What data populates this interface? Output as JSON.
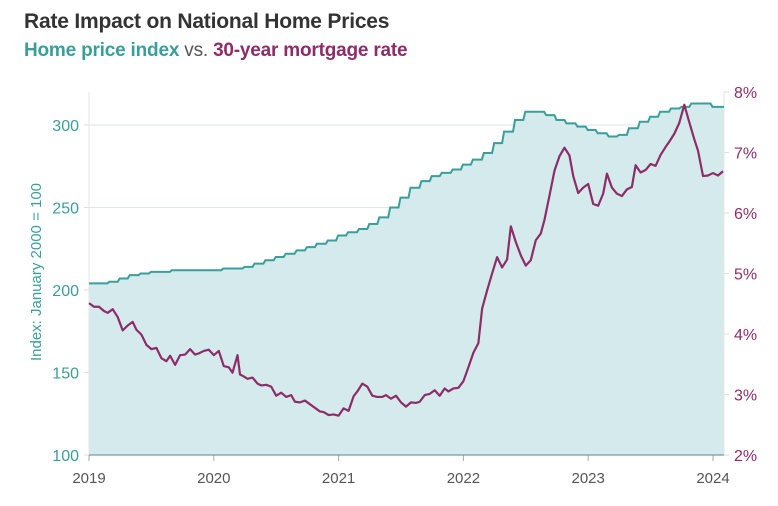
{
  "header": {
    "title": "Rate Impact on National Home Prices",
    "subtitle_part1": "Home price index",
    "subtitle_vs": "vs.",
    "subtitle_part2": "30-year mortgage rate"
  },
  "colors": {
    "hpi": "#3a9e9a",
    "hpi_fill": "#d5eaec",
    "rate": "#8c2d67",
    "grid": "#dfe6e8",
    "axis_text": "#555555"
  },
  "chart_data": {
    "type": "line",
    "title": "Rate Impact on National Home Prices",
    "subtitle": "Home price index vs. 30-year mortgage rate",
    "xlabel": "",
    "ylabel": "Index: January 2000 = 100",
    "y2label": "",
    "xlim": [
      2019.0,
      2024.1
    ],
    "ylim": [
      100,
      320
    ],
    "y2lim": [
      2,
      8
    ],
    "x_ticks": [
      "2019",
      "2020",
      "2021",
      "2022",
      "2023",
      "2024"
    ],
    "y_ticks": [
      "100",
      "150",
      "200",
      "250",
      "300"
    ],
    "y2_ticks": [
      "2%",
      "3%",
      "4%",
      "5%",
      "6%",
      "7%",
      "8%"
    ],
    "grid": true,
    "series": [
      {
        "name": "Home price index",
        "axis": "left",
        "style": "area-step",
        "x": [
          2019.0,
          2019.08,
          2019.17,
          2019.25,
          2019.33,
          2019.42,
          2019.5,
          2019.58,
          2019.67,
          2019.75,
          2019.83,
          2019.92,
          2020.0,
          2020.08,
          2020.17,
          2020.25,
          2020.33,
          2020.42,
          2020.5,
          2020.58,
          2020.67,
          2020.75,
          2020.83,
          2020.92,
          2021.0,
          2021.08,
          2021.17,
          2021.25,
          2021.33,
          2021.42,
          2021.5,
          2021.58,
          2021.67,
          2021.75,
          2021.83,
          2021.92,
          2022.0,
          2022.08,
          2022.17,
          2022.25,
          2022.33,
          2022.42,
          2022.5,
          2022.58,
          2022.67,
          2022.75,
          2022.83,
          2022.92,
          2023.0,
          2023.08,
          2023.17,
          2023.25,
          2023.33,
          2023.42,
          2023.5,
          2023.58,
          2023.67,
          2023.75,
          2023.83,
          2023.92,
          2024.0,
          2024.08
        ],
        "values": [
          204,
          204,
          205,
          207,
          209,
          210,
          211,
          211,
          212,
          212,
          212,
          212,
          212,
          213,
          213,
          214,
          216,
          218,
          220,
          222,
          224,
          226,
          228,
          230,
          233,
          235,
          237,
          240,
          244,
          250,
          256,
          262,
          266,
          269,
          271,
          273,
          276,
          279,
          283,
          289,
          296,
          303,
          308,
          308,
          306,
          303,
          301,
          299,
          297,
          295,
          293,
          294,
          298,
          302,
          305,
          308,
          310,
          311,
          313,
          313,
          311,
          311
        ]
      },
      {
        "name": "30-year mortgage rate",
        "axis": "right",
        "style": "line",
        "x": [
          2019.0,
          2019.04,
          2019.08,
          2019.12,
          2019.15,
          2019.19,
          2019.23,
          2019.27,
          2019.31,
          2019.35,
          2019.38,
          2019.42,
          2019.46,
          2019.5,
          2019.54,
          2019.58,
          2019.62,
          2019.65,
          2019.69,
          2019.73,
          2019.77,
          2019.81,
          2019.85,
          2019.88,
          2019.92,
          2019.96,
          2020.0,
          2020.04,
          2020.08,
          2020.12,
          2020.15,
          2020.19,
          2020.21,
          2020.23,
          2020.27,
          2020.31,
          2020.35,
          2020.38,
          2020.42,
          2020.46,
          2020.5,
          2020.54,
          2020.58,
          2020.62,
          2020.65,
          2020.69,
          2020.73,
          2020.77,
          2020.81,
          2020.85,
          2020.88,
          2020.92,
          2020.96,
          2021.0,
          2021.04,
          2021.08,
          2021.12,
          2021.15,
          2021.19,
          2021.23,
          2021.27,
          2021.31,
          2021.35,
          2021.38,
          2021.42,
          2021.46,
          2021.5,
          2021.54,
          2021.58,
          2021.62,
          2021.65,
          2021.69,
          2021.73,
          2021.77,
          2021.81,
          2021.85,
          2021.88,
          2021.92,
          2021.96,
          2022.0,
          2022.04,
          2022.08,
          2022.12,
          2022.15,
          2022.19,
          2022.23,
          2022.27,
          2022.31,
          2022.35,
          2022.38,
          2022.42,
          2022.46,
          2022.5,
          2022.54,
          2022.58,
          2022.62,
          2022.65,
          2022.69,
          2022.73,
          2022.77,
          2022.81,
          2022.85,
          2022.88,
          2022.92,
          2022.96,
          2023.0,
          2023.04,
          2023.08,
          2023.12,
          2023.15,
          2023.19,
          2023.23,
          2023.27,
          2023.31,
          2023.35,
          2023.38,
          2023.42,
          2023.46,
          2023.5,
          2023.54,
          2023.58,
          2023.62,
          2023.65,
          2023.69,
          2023.73,
          2023.77,
          2023.81,
          2023.85,
          2023.88,
          2023.92,
          2023.96,
          2024.0,
          2024.04,
          2024.08
        ],
        "values": [
          4.51,
          4.45,
          4.45,
          4.38,
          4.35,
          4.41,
          4.28,
          4.06,
          4.14,
          4.2,
          4.07,
          3.99,
          3.82,
          3.75,
          3.77,
          3.6,
          3.55,
          3.64,
          3.49,
          3.65,
          3.66,
          3.75,
          3.66,
          3.68,
          3.72,
          3.74,
          3.65,
          3.72,
          3.47,
          3.45,
          3.36,
          3.65,
          3.33,
          3.31,
          3.26,
          3.28,
          3.18,
          3.15,
          3.16,
          3.13,
          2.98,
          3.03,
          2.96,
          2.99,
          2.88,
          2.87,
          2.9,
          2.84,
          2.78,
          2.72,
          2.71,
          2.66,
          2.67,
          2.65,
          2.77,
          2.73,
          2.97,
          3.05,
          3.18,
          3.13,
          2.98,
          2.96,
          2.96,
          2.99,
          2.93,
          2.98,
          2.87,
          2.8,
          2.87,
          2.86,
          2.88,
          2.99,
          3.01,
          3.07,
          2.98,
          3.1,
          3.05,
          3.1,
          3.11,
          3.22,
          3.45,
          3.69,
          3.85,
          4.42,
          4.72,
          5.0,
          5.27,
          5.1,
          5.23,
          5.78,
          5.52,
          5.3,
          5.13,
          5.22,
          5.55,
          5.66,
          5.89,
          6.29,
          6.7,
          6.94,
          7.08,
          6.95,
          6.61,
          6.33,
          6.42,
          6.48,
          6.15,
          6.12,
          6.32,
          6.65,
          6.42,
          6.32,
          6.28,
          6.39,
          6.43,
          6.79,
          6.67,
          6.71,
          6.81,
          6.78,
          6.96,
          7.09,
          7.18,
          7.31,
          7.49,
          7.79,
          7.5,
          7.22,
          7.03,
          6.61,
          6.62,
          6.66,
          6.62,
          6.69
        ]
      }
    ]
  }
}
